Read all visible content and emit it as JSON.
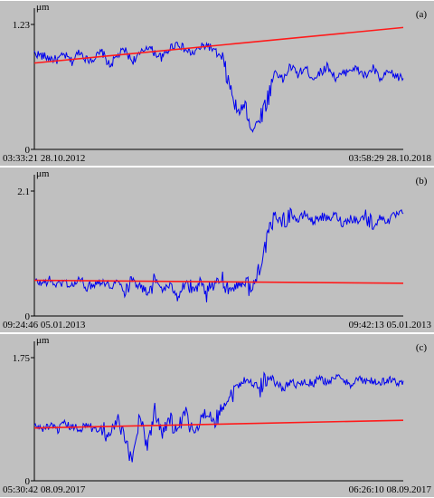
{
  "colors": {
    "background": "#c0c0c0",
    "axis": "#000000",
    "signal": "#0000ee",
    "trend": "#ff1a1a"
  },
  "chart_data": [
    {
      "type": "line",
      "panel_label": "(a)",
      "unit": "μm",
      "ylim": [
        0,
        1.23
      ],
      "y_ticks": [
        "0",
        "1.23"
      ],
      "x_start_label": "03:33:21 28.10.2012",
      "x_end_label": "03:58:29 28.10.2018",
      "grid": false,
      "series": [
        {
          "values": [
            0.95,
            0.92,
            0.9,
            0.88,
            0.93,
            0.86,
            0.97,
            0.88,
            0.9,
            0.96,
            0.82,
            0.92,
            0.98,
            0.87,
            0.93,
            1.02,
            0.95,
            0.9,
            1.0,
            1.05,
            0.98,
            0.94,
            1.0,
            1.03,
            0.96,
            0.88,
            0.6,
            0.35,
            0.45,
            0.18,
            0.32,
            0.5,
            0.78,
            0.68,
            0.82,
            0.74,
            0.8,
            0.7,
            0.76,
            0.82,
            0.7,
            0.74,
            0.8,
            0.78,
            0.72,
            0.8,
            0.68,
            0.76,
            0.72,
            0.7
          ]
        },
        {
          "values": [
            0.85,
            1.2
          ]
        }
      ]
    },
    {
      "type": "line",
      "panel_label": "(b)",
      "unit": "μm",
      "ylim": [
        0,
        2.1
      ],
      "y_ticks": [
        "0",
        "2.1"
      ],
      "x_start_label": "09:24:46 05.01.2013",
      "x_end_label": "09:42:13 05.01.2013",
      "grid": false,
      "series": [
        {
          "values": [
            0.58,
            0.55,
            0.6,
            0.52,
            0.58,
            0.5,
            0.62,
            0.48,
            0.55,
            0.6,
            0.5,
            0.58,
            0.45,
            0.62,
            0.5,
            0.4,
            0.6,
            0.45,
            0.5,
            0.38,
            0.58,
            0.42,
            0.5,
            0.35,
            0.55,
            0.62,
            0.45,
            0.52,
            0.58,
            0.42,
            0.9,
            1.3,
            1.7,
            1.55,
            1.75,
            1.6,
            1.72,
            1.58,
            1.68,
            1.62,
            1.7,
            1.55,
            1.65,
            1.6,
            1.68,
            1.52,
            1.65,
            1.6,
            1.7,
            1.72
          ]
        },
        {
          "values": [
            0.6,
            0.55
          ]
        }
      ]
    },
    {
      "type": "line",
      "panel_label": "(c)",
      "unit": "μm",
      "ylim": [
        0,
        1.75
      ],
      "y_ticks": [
        "0",
        "1.75"
      ],
      "x_start_label": "05:30:42 08.09.2017",
      "x_end_label": "06:26:10 08.09.2017",
      "grid": false,
      "series": [
        {
          "values": [
            0.78,
            0.74,
            0.78,
            0.72,
            0.8,
            0.76,
            0.74,
            0.8,
            0.72,
            0.78,
            0.6,
            0.9,
            0.55,
            0.3,
            0.95,
            0.5,
            1.0,
            0.72,
            0.88,
            0.66,
            0.95,
            0.7,
            0.8,
            0.98,
            0.85,
            1.05,
            1.2,
            1.35,
            1.45,
            1.38,
            1.32,
            1.5,
            1.4,
            1.3,
            1.42,
            1.36,
            1.4,
            1.38,
            1.45,
            1.4,
            1.48,
            1.42,
            1.38,
            1.45,
            1.4,
            1.42,
            1.38,
            1.44,
            1.4,
            1.42
          ]
        },
        {
          "values": [
            0.75,
            0.86
          ]
        }
      ]
    }
  ]
}
